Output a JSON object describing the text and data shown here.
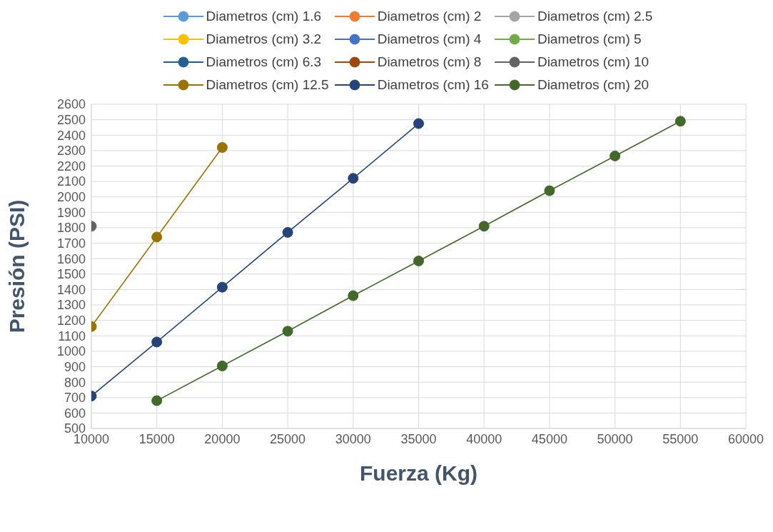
{
  "chart_data": {
    "type": "line",
    "xlabel": "Fuerza (Kg)",
    "ylabel": "Presión (PSI)",
    "xlim": [
      10000,
      60000
    ],
    "xticks": [
      10000,
      15000,
      20000,
      25000,
      30000,
      35000,
      40000,
      45000,
      50000,
      55000,
      60000
    ],
    "ylim": [
      500,
      2600
    ],
    "yticks": [
      500,
      600,
      700,
      800,
      900,
      1000,
      1100,
      1200,
      1300,
      1400,
      1500,
      1600,
      1700,
      1800,
      1900,
      2000,
      2100,
      2200,
      2300,
      2400,
      2500,
      2600
    ],
    "grid": true,
    "legend": "top",
    "marker": "circle",
    "line_style": "solid",
    "series": [
      {
        "name": "Diametros (cm) 1.6",
        "color": "#5b9bd5"
      },
      {
        "name": "Diametros (cm) 2",
        "color": "#ed7d31"
      },
      {
        "name": "Diametros (cm) 2.5",
        "color": "#a5a5a5"
      },
      {
        "name": "Diametros (cm) 3.2",
        "color": "#ffc000"
      },
      {
        "name": "Diametros (cm) 4",
        "color": "#4472c4"
      },
      {
        "name": "Diametros (cm) 5",
        "color": "#70ad47"
      },
      {
        "name": "Diametros (cm) 6.3",
        "color": "#255e91"
      },
      {
        "name": "Diametros (cm) 8",
        "color": "#9e480e"
      },
      {
        "name": "Diametros (cm) 10",
        "color": "#636363",
        "x": [
          10000
        ],
        "values": [
          1810
        ]
      },
      {
        "name": "Diametros (cm) 12.5",
        "color": "#997300",
        "x": [
          10000,
          15000,
          20000
        ],
        "values": [
          1160,
          1740,
          2320
        ]
      },
      {
        "name": "Diametros (cm) 16",
        "color": "#264478",
        "x": [
          10000,
          15000,
          20000,
          25000,
          30000,
          35000
        ],
        "values": [
          710,
          1060,
          1415,
          1770,
          2120,
          2475
        ]
      },
      {
        "name": "Diametros (cm) 20",
        "color": "#43682b",
        "x": [
          15000,
          20000,
          25000,
          30000,
          35000,
          40000,
          45000,
          50000,
          55000
        ],
        "values": [
          680,
          905,
          1130,
          1360,
          1585,
          1810,
          2040,
          2265,
          2490
        ]
      }
    ]
  }
}
